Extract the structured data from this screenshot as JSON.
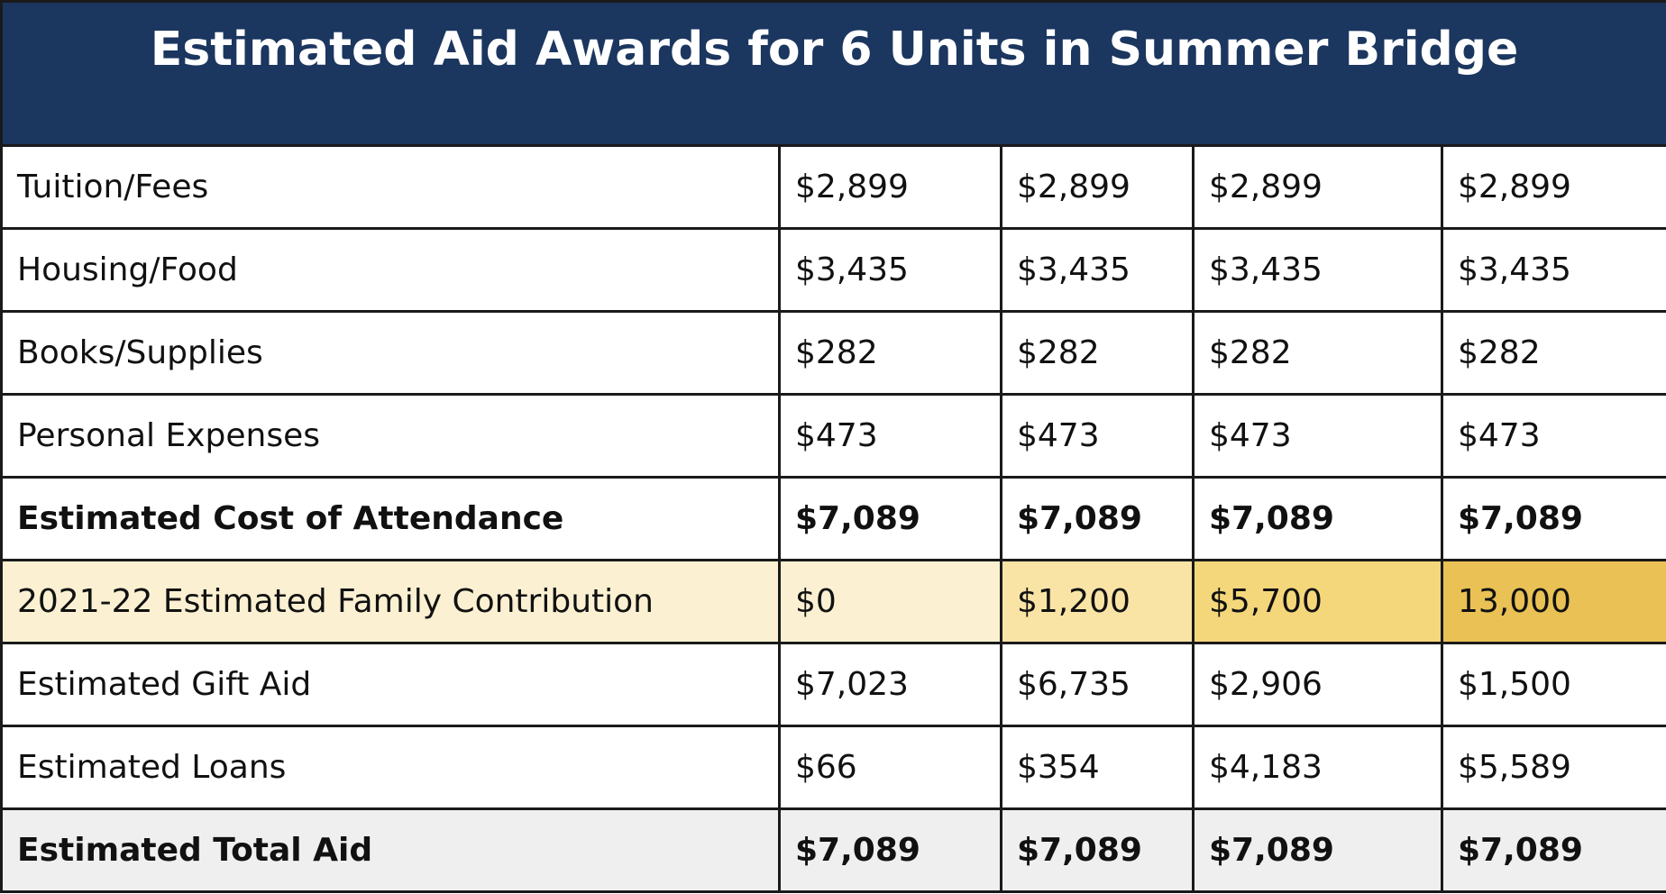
{
  "title": "Estimated Aid Awards for 6 Units in Summer Bridge",
  "rows": [
    {
      "label": "Tuition/Fees",
      "values": [
        "$2,899",
        "$2,899",
        "$2,899",
        "$2,899"
      ]
    },
    {
      "label": "Housing/Food",
      "values": [
        "$3,435",
        "$3,435",
        "$3,435",
        "$3,435"
      ]
    },
    {
      "label": "Books/Supplies",
      "values": [
        "$282",
        "$282",
        "$282",
        "$282"
      ]
    },
    {
      "label": "Personal Expenses",
      "values": [
        "$473",
        "$473",
        "$473",
        "$473"
      ]
    },
    {
      "label": "Estimated Cost of Attendance",
      "values": [
        "$7,089",
        "$7,089",
        "$7,089",
        "$7,089"
      ]
    },
    {
      "label": "2021-22 Estimated Family Contribution",
      "values": [
        "$0",
        "$1,200",
        "$5,700",
        "13,000"
      ]
    },
    {
      "label": "Estimated Gift Aid",
      "values": [
        "$7,023",
        "$6,735",
        "$2,906",
        "$1,500"
      ]
    },
    {
      "label": "Estimated Loans",
      "values": [
        "$66",
        "$354",
        "$4,183",
        "$5,589"
      ]
    },
    {
      "label": "Estimated Total Aid",
      "values": [
        "$7,089",
        "$7,089",
        "$7,089",
        "$7,089"
      ]
    }
  ],
  "colors": {
    "header_bg": "#1b365f",
    "efc_shades": [
      "#fbf1d2",
      "#fbf1d2",
      "#f9e4a6",
      "#f5d77b",
      "#e9c155"
    ],
    "total_row_bg": "#efefef"
  }
}
